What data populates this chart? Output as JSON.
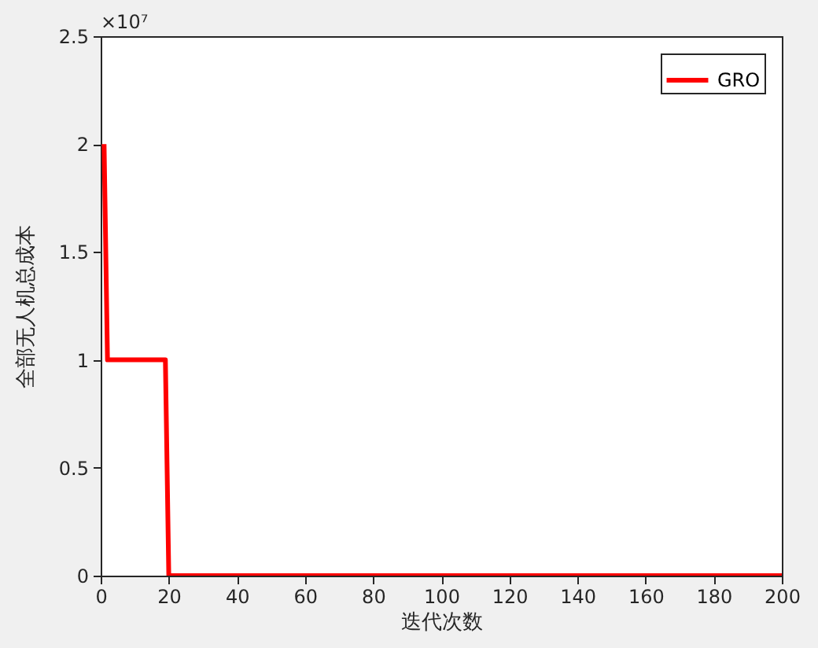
{
  "chart_data": {
    "type": "line",
    "xlabel": "迭代次数",
    "ylabel": "全部无人机总成本",
    "annotations": [
      "×10⁷"
    ],
    "series": [
      {
        "name": "GRO",
        "color": "#ff0000",
        "x": [
          1,
          2,
          19,
          20,
          200
        ],
        "values": [
          2,
          1,
          1,
          0,
          0
        ]
      }
    ],
    "xlim": [
      0,
      200
    ],
    "xticks": [
      0,
      20,
      40,
      60,
      80,
      100,
      120,
      140,
      160,
      180,
      200
    ],
    "ylim": [
      0,
      2.5
    ],
    "yticks": [
      0,
      0.5,
      1,
      1.5,
      2,
      2.5
    ],
    "grid": false,
    "legend": "top right",
    "marker": "none",
    "line_style": "solid"
  }
}
